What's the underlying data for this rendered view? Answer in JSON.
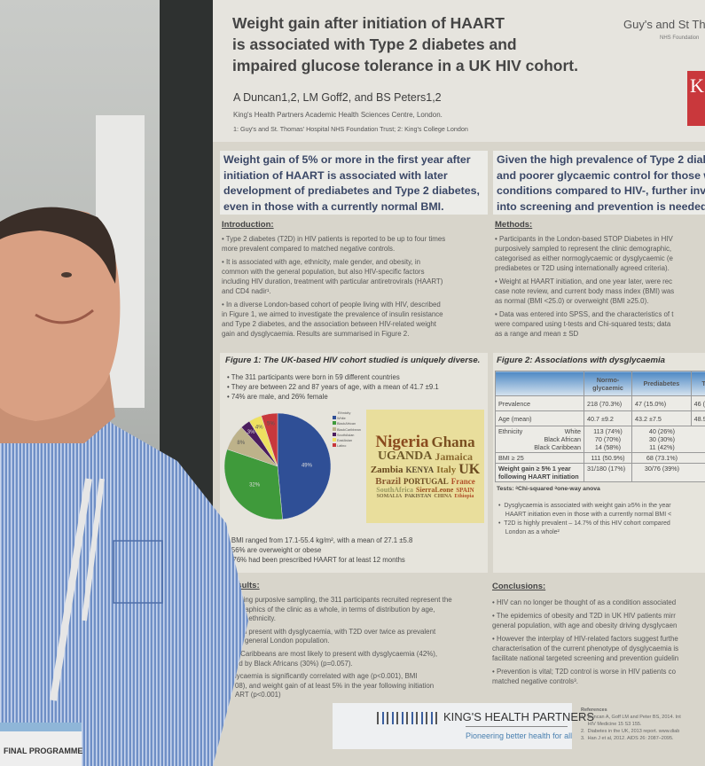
{
  "poster": {
    "title": "Weight gain after initiation of HAART\nis associated with Type 2 diabetes and\nimpaired glucose tolerance in a UK HIV cohort.",
    "org": "Guy's and St Thom",
    "org_sub": "NHS Foundation",
    "logo_letter": "K",
    "authors": "A Duncan1,2, LM Goff2, and BS Peters1,2",
    "affiliation": "King's Health Partners Academic Health Sciences Centre, London.",
    "affiliation2": "1: Guy's and St. Thomas' Hospital NHS Foundation Trust; 2: King's College London",
    "key_left": [
      "Weight gain of 5% or more in the first year after",
      "initiation of HAART is associated with later",
      "development of prediabetes and Type 2 diabetes,",
      "even in those with a currently normal BMI."
    ],
    "key_right": [
      "Given the high prevalence of Type 2 diab",
      "and poorer glycaemic control for those w",
      "conditions compared to HIV-, further inve",
      "into screening and prevention is needed."
    ],
    "intro": {
      "heading": "Introduction:",
      "bullets": [
        [
          "• Type 2 diabetes (T2D) in HIV patients is reported to be up to four times",
          "more prevalent compared to matched negative controls."
        ],
        [
          "• It is associated with age, ethnicity, male gender, and obesity, in",
          "common with the general population, but also HIV-specific factors",
          "including HIV duration, treatment with particular antiretrovirals (HAART)",
          "and CD4 nadir¹."
        ],
        [
          "• In a diverse London-based cohort of people living with HIV, described",
          "in Figure 1, we aimed to investigate the prevalence of insulin resistance",
          "and Type 2 diabetes, and the association between HIV-related weight",
          "gain and dysglycaemia. Results are summarised in Figure 2."
        ]
      ]
    },
    "methods": {
      "heading": "Methods:",
      "bullets": [
        [
          "• Participants in the London-based STOP Diabetes in HIV",
          "purposively sampled to represent the clinic demographic,",
          "categorised as either normoglycaemic or dysglycaemic (e",
          "prediabetes or T2D using internationally agreed criteria)."
        ],
        [
          "• Weight at HAART initiation, and one year later, were rec",
          "case note review, and current body mass index (BMI) was",
          "as normal (BMI <25.0) or overweight (BMI ≥25.0)."
        ],
        [
          "• Data was entered into SPSS, and the characteristics of t",
          "were compared using t-tests and Chi-squared tests; data",
          "as a range and mean ± SD"
        ]
      ]
    },
    "figure1": {
      "title": "Figure 1: The UK-based HIV cohort studied is uniquely diverse.",
      "bullets_top": [
        "•  The 311 participants were born in 59 different countries",
        "•  They are between 22 and 87 years of age, with a mean of 41.7 ±9.1",
        "•  74% are male, and 26% female"
      ],
      "bullets_bottom": [
        "•  BMI ranged from 17.1-55.4 kg/m², with a mean of 27.1 ±5.8",
        "•  56% are overweight or obese",
        "   76% had been prescribed HAART for at least 12 months"
      ],
      "legend_title": "Ethnicity",
      "pie": [
        {
          "label": "White",
          "value": 49,
          "text": "49%",
          "color": "#2f4f96"
        },
        {
          "label": "BlackAfrican",
          "value": 32,
          "text": "32%",
          "color": "#3f9a3b"
        },
        {
          "label": "BlackCaribbean",
          "value": 8,
          "text": "8%",
          "color": "#bdb28a"
        },
        {
          "label": "SouthAsian",
          "value": 3,
          "text": "3%",
          "color": "#4b1d5e"
        },
        {
          "label": "EastAsian",
          "value": 4,
          "text": "4%",
          "color": "#eee160"
        },
        {
          "label": "Latino",
          "value": 5,
          "text": "5%",
          "color": "#c8383c"
        }
      ],
      "wordcloud": [
        "Nigeria",
        "Ghana",
        "UGANDA",
        "Jamaica",
        "Zambia",
        "KENYA",
        "Italy",
        "UK",
        "Brazil",
        "PORTUGAL",
        "France",
        "SouthAfrica",
        "SierraLeone",
        "SPAIN",
        "SOMALIA",
        "PAKISTAN",
        "CHINA",
        "Ethiopia"
      ]
    },
    "figure2": {
      "title": "Figure 2: Associations with dysglycaemia",
      "headers": [
        "",
        "Normo-glycaemic",
        "Prediabetes",
        "T2D"
      ],
      "rows": [
        [
          "Prevalence",
          "218 (70.3%)",
          "47 (15.0%)",
          "46 (14"
        ],
        [
          "Age (mean)",
          "40.7 ±9.2",
          "43.2 ±7.5",
          "48.9 ±"
        ]
      ],
      "ethnicity_label": "Ethnicity",
      "ethnicity": [
        [
          "White",
          "113 (74%)",
          "40 (26%)"
        ],
        [
          "Black African",
          "70 (70%)",
          "30 (30%)"
        ],
        [
          "Black Caribbean",
          "14 (58%)",
          "11 (42%)"
        ]
      ],
      "bmi": [
        "BMI ≥ 25",
        "111 (50.9%)",
        "68 (73.1%)"
      ],
      "weight": [
        "Weight gain ≥ 5% 1 year following HAART initiation",
        "31/180 (17%)",
        "30/76 (39%)"
      ],
      "tests": "Tests: ᵃChi-squared ᵃone-way anova",
      "bullets": [
        "•  Dysglycaemia is associated with weight gain ≥5% in the year",
        "    HAART initiation even in those with a currently normal BMI <",
        "•  T2D is highly prevalent – 14.7% of this HIV cohort compared",
        "    London as a whole²"
      ]
    },
    "results": {
      "heading": "esults:",
      "lines": [
        "Using purposive sampling, the 311 participants recruited represent the",
        "ographics of the clinic as a whole, in terms of distribution by age,",
        "and ethnicity.",
        "hird present with dysglycaemia, with T2D over twice as prevalent",
        "ne general London population.",
        "k Caribbeans are most likely to present with dysglycaemia (42%),",
        "ed by Black Africans (30%) (p=0.057).",
        "lycaemia is significantly correlated with age (p<0.001), BMI",
        "08), and weight gain of at least 5% in the year following initiation",
        "ART (p<0.001)"
      ]
    },
    "conclusions": {
      "heading": "Conclusions:",
      "bullets": [
        [
          "• HIV can no longer be thought of as a condition associated"
        ],
        [
          "• The epidemics of obesity and T2D in UK HIV patients mirr",
          "general population, with age and obesity driving dysglycaen"
        ],
        [
          "• However the interplay of HIV-related factors suggest furthe",
          "characterisation of the current phenotype of dysglycaemia is",
          "facilitate national targeted screening and prevention guidelin"
        ],
        [
          "• Prevention is vital; T2D control is worse in HIV patients co",
          "matched negative controls³."
        ]
      ]
    },
    "banner": {
      "name": "KING'S HEALTH PARTNERS",
      "tagline": "Pioneering better health for all"
    },
    "references": {
      "heading": "References",
      "items": [
        "1.  Duncan A, Goff LM and Peter BS, 2014. Int",
        "     HIV Medicine 15 S3 155.",
        "2.  Diabetes in the UK, 2013 report. www.diab",
        "3.  Han J et al, 2012. AIDS 26: 2087–2095."
      ]
    }
  },
  "badge": {
    "text": "FINAL PROGRAMME"
  }
}
